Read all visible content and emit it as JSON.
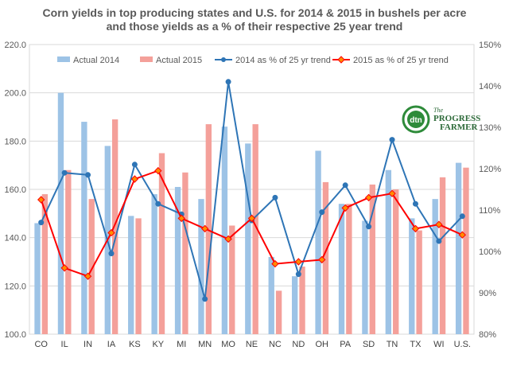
{
  "chart_data": {
    "type": "bar",
    "title_line1": "Corn yields in top producing states and U.S. for 2014 & 2015 in bushels per acre",
    "title_line2": "and those yields as a % of their respective 25 year trend",
    "categories": [
      "CO",
      "IL",
      "IN",
      "IA",
      "KS",
      "KY",
      "MI",
      "MN",
      "MO",
      "NE",
      "NC",
      "ND",
      "OH",
      "PA",
      "SD",
      "TN",
      "TX",
      "WI",
      "U.S."
    ],
    "bar_series": [
      {
        "name": "Actual 2014",
        "color": "#9dc3e6",
        "values": [
          146,
          200,
          188,
          178,
          149,
          158,
          161,
          156,
          186,
          179,
          132,
          124,
          176,
          154,
          147,
          168,
          148,
          156,
          171
        ]
      },
      {
        "name": "Actual 2015",
        "color": "#f4a09a",
        "values": [
          158,
          168,
          156,
          189,
          148,
          175,
          167,
          187,
          145,
          187,
          118,
          128,
          163,
          154,
          162,
          160,
          143,
          165,
          169
        ]
      }
    ],
    "line_series": [
      {
        "name": "2014  as % of 25 yr trend",
        "color": "#2e75b6",
        "values": [
          107,
          119,
          118.5,
          99.5,
          121,
          111.5,
          109,
          88.5,
          141,
          107.5,
          113,
          94.5,
          109.5,
          116,
          106,
          127,
          111.5,
          102.5,
          108.5
        ]
      },
      {
        "name": "2015 as % of 25 yr trend",
        "color": "#ff0000",
        "values": [
          112.5,
          96,
          94,
          104.5,
          117.5,
          119.5,
          108,
          105.5,
          103,
          108,
          97,
          97.5,
          98,
          110.5,
          113,
          114,
          105.5,
          106.5,
          104
        ]
      }
    ],
    "y_left": {
      "min": 100,
      "max": 220,
      "step": 20,
      "ticks": [
        "100.0",
        "120.0",
        "140.0",
        "160.0",
        "180.0",
        "200.0",
        "220.0"
      ]
    },
    "y_right": {
      "min": 80,
      "max": 150,
      "step": 10,
      "ticks": [
        "80%",
        "90%",
        "100%",
        "110%",
        "120%",
        "130%",
        "140%",
        "150%"
      ]
    },
    "grid": "horizontal",
    "legend": "top"
  },
  "logo": {
    "mark": "dtn",
    "line1": "The",
    "line2": "PROGRESSIVE",
    "line3": "FARMER"
  }
}
